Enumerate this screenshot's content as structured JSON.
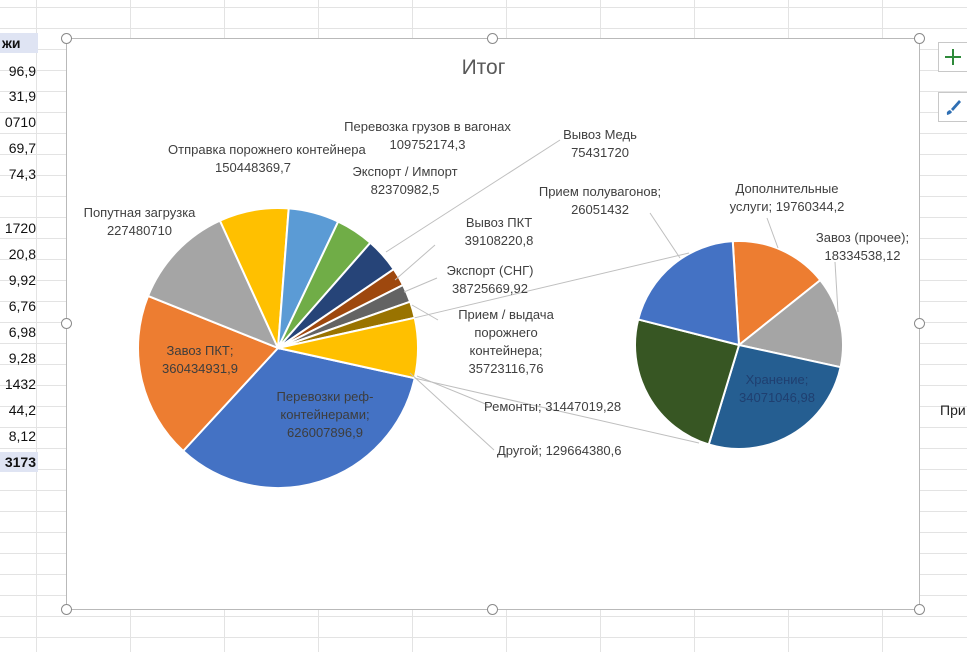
{
  "sheet": {
    "header_cell": "жи",
    "cells": [
      "96,9",
      "31,9",
      "0710",
      "69,7",
      "74,3",
      "1720",
      "20,8",
      "9,92",
      "6,76",
      "6,98",
      "9,28",
      "1432",
      "44,2",
      "8,12"
    ],
    "total_cell": "3173"
  },
  "side_panel": {
    "add_icon": "plus-icon",
    "style_icon": "brush-icon",
    "partial_label": "При"
  },
  "chart_data": {
    "type": "pie",
    "subtype": "pie-of-pie",
    "title": "Итог",
    "colors": {
      "blue": "#4472c4",
      "orange": "#ed7d31",
      "gray": "#a5a5a5",
      "gold": "#ffc000",
      "light_blue": "#5b9bd5",
      "green": "#70ad47",
      "navy": "#264478",
      "dark_orange": "#9e480e",
      "dark_gray": "#636363",
      "dark_gold": "#997300"
    },
    "primary": [
      {
        "label": "Перевозки реф-контейнерами",
        "value": 626007896.9,
        "value_text": "626007896,9",
        "color": "#4472c4"
      },
      {
        "label": "Завоз ПКТ",
        "value": 360434931.9,
        "value_text": "360434931,9",
        "color": "#ed7d31"
      },
      {
        "label": "Попутная загрузка",
        "value": 227480710,
        "value_text": "227480710",
        "color": "#a5a5a5"
      },
      {
        "label": "Отправка порожнего контейнера",
        "value": 150448369.7,
        "value_text": "150448369,7",
        "color": "#ffc000"
      },
      {
        "label": "Перевозка грузов в вагонах",
        "value": 109752174.3,
        "value_text": "109752174,3",
        "color": "#5b9bd5"
      },
      {
        "label": "Экспорт / Импорт",
        "value": 82370982.5,
        "value_text": "82370982,5",
        "color": "#70ad47"
      },
      {
        "label": "Вывоз Медь",
        "value": 75431720,
        "value_text": "75431720",
        "color": "#264478"
      },
      {
        "label": "Вывоз ПКТ",
        "value": 39108220.8,
        "value_text": "39108220,8",
        "color": "#9e480e"
      },
      {
        "label": "Экспорт (СНГ)",
        "value": 38725669.92,
        "value_text": "38725669,92",
        "color": "#636363"
      },
      {
        "label": "Прием / выдача порожнего контейнера",
        "value": 35723116.76,
        "value_text": "35723116,76",
        "color": "#997300"
      },
      {
        "label": "Другой",
        "value": 129664380.6,
        "value_text": "129664380,6",
        "color": "#ffc000"
      }
    ],
    "secondary": [
      {
        "label": "Ремонты",
        "value": 31447019.28,
        "value_text": "31447019,28",
        "color": "#264478"
      },
      {
        "label": "Прием полувагонов",
        "value": 26051432,
        "value_text": "26051432",
        "color": "#4472c4"
      },
      {
        "label": "Дополнительные услуги",
        "value": 19760344.2,
        "value_text": "19760344,2",
        "color": "#ed7d31"
      },
      {
        "label": "Завоз (прочее)",
        "value": 18334538.12,
        "value_text": "18334538,12",
        "color": "#a5a5a5"
      },
      {
        "label": "Хранение",
        "value": 34071046.98,
        "value_text": "34071046,98",
        "color": "#255e91"
      }
    ],
    "legend": "none"
  }
}
